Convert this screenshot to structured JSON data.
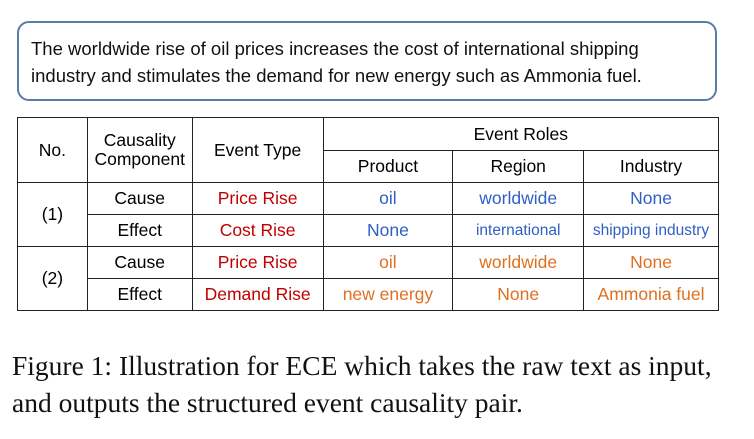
{
  "raw_text": "The worldwide rise of oil prices increases the cost of international shipping industry and stimulates the demand for new energy such as Ammonia fuel.",
  "table": {
    "headers": {
      "no": "No.",
      "causality_component": "Causality Component",
      "event_type": "Event Type",
      "event_roles": "Event Roles",
      "product": "Product",
      "region": "Region",
      "industry": "Industry"
    },
    "groups": [
      {
        "no": "(1)",
        "rows": [
          {
            "component": "Cause",
            "event_type": "Price Rise",
            "product": "oil",
            "region": "worldwide",
            "industry": "None"
          },
          {
            "component": "Effect",
            "event_type": "Cost Rise",
            "product": "None",
            "region": "international",
            "industry": "shipping industry"
          }
        ]
      },
      {
        "no": "(2)",
        "rows": [
          {
            "component": "Cause",
            "event_type": "Price Rise",
            "product": "oil",
            "region": "worldwide",
            "industry": "None"
          },
          {
            "component": "Effect",
            "event_type": "Demand Rise",
            "product": "new energy",
            "region": "None",
            "industry": "Ammonia fuel"
          }
        ]
      }
    ]
  },
  "colors": {
    "event_type": "#c00000",
    "group1_roles": "#2f5fc4",
    "group2_roles": "#e07020",
    "box_border": "#5a7ba8"
  },
  "caption": "Figure 1: Illustration for ECE which takes the raw text as input, and outputs the structured event causality pair."
}
